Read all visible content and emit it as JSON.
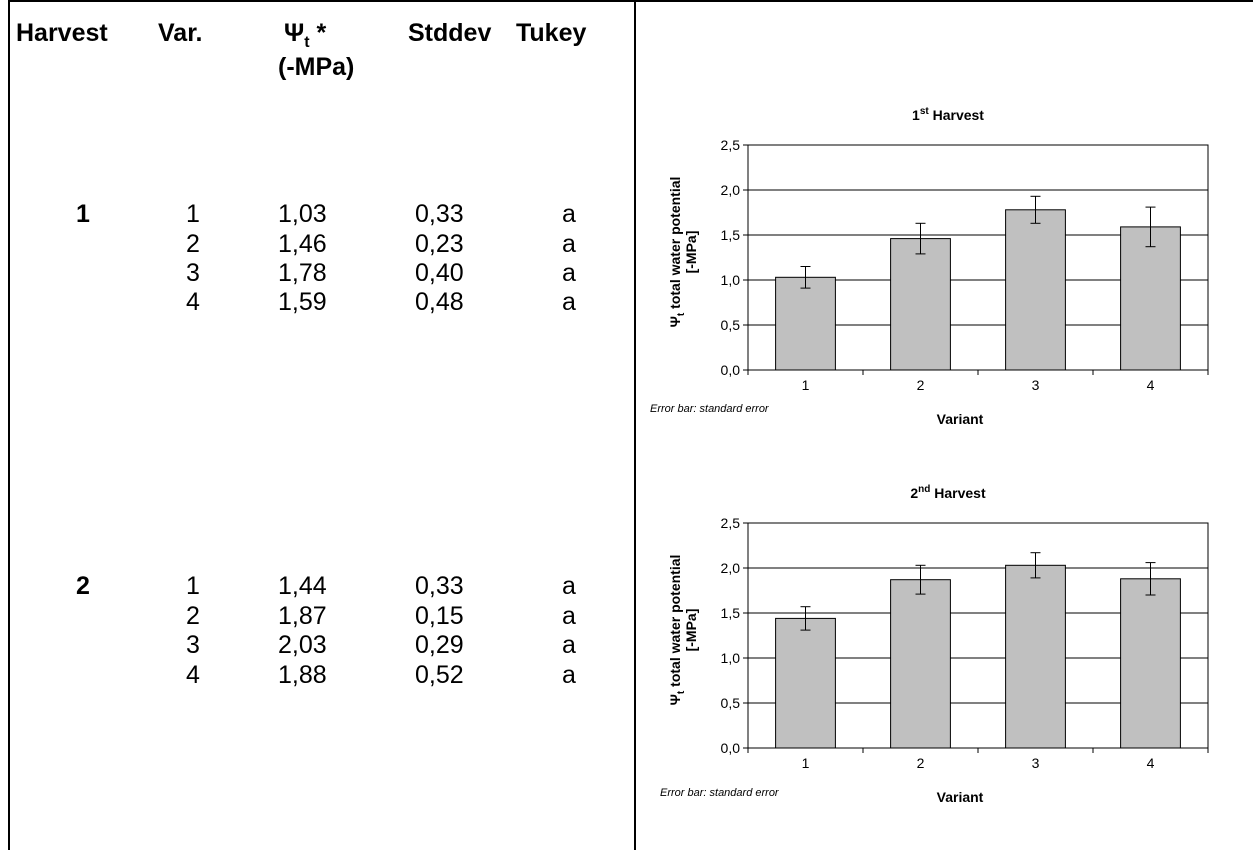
{
  "table": {
    "headers": {
      "harvest": "Harvest",
      "var": "Var.",
      "psi_main": "Ψ",
      "psi_sub": "t",
      "psi_star": " *",
      "psi_unit": "(-MPa)",
      "stddev": "Stddev",
      "tukey": "Tukey"
    },
    "groups": [
      {
        "harvest": "1",
        "rows": [
          {
            "var": "1",
            "psi": "1,03",
            "stddev": "0,33",
            "tukey": "a"
          },
          {
            "var": "2",
            "psi": "1,46",
            "stddev": "0,23",
            "tukey": "a"
          },
          {
            "var": "3",
            "psi": "1,78",
            "stddev": "0,40",
            "tukey": "a"
          },
          {
            "var": "4",
            "psi": "1,59",
            "stddev": "0,48",
            "tukey": "a"
          }
        ]
      },
      {
        "harvest": "2",
        "rows": [
          {
            "var": "1",
            "psi": "1,44",
            "stddev": "0,33",
            "tukey": "a"
          },
          {
            "var": "2",
            "psi": "1,87",
            "stddev": "0,15",
            "tukey": "a"
          },
          {
            "var": "3",
            "psi": "2,03",
            "stddev": "0,29",
            "tukey": "a"
          },
          {
            "var": "4",
            "psi": "1,88",
            "stddev": "0,52",
            "tukey": "a"
          }
        ]
      }
    ]
  },
  "chart_data": [
    {
      "type": "bar",
      "title_num": "1",
      "title_sup": "st",
      "title_rest": " Harvest",
      "categories": [
        "1",
        "2",
        "3",
        "4"
      ],
      "values": [
        1.03,
        1.46,
        1.78,
        1.59
      ],
      "errors": [
        0.12,
        0.17,
        0.15,
        0.22
      ],
      "ylim": [
        0,
        2.5
      ],
      "yticks": [
        "0,0",
        "0,5",
        "1,0",
        "1,5",
        "2,0",
        "2,5"
      ],
      "ylabel_psi": "Ψ",
      "ylabel_sub": "t",
      "ylabel_rest": " total water potential",
      "ylabel_unit": "[-MPa]",
      "xlabel": "Variant",
      "note": "Error bar: standard error",
      "grid": true,
      "bar_color": "#c0c0c0"
    },
    {
      "type": "bar",
      "title_num": "2",
      "title_sup": "nd",
      "title_rest": " Harvest",
      "categories": [
        "1",
        "2",
        "3",
        "4"
      ],
      "values": [
        1.44,
        1.87,
        2.03,
        1.88
      ],
      "errors": [
        0.13,
        0.16,
        0.14,
        0.18
      ],
      "ylim": [
        0,
        2.5
      ],
      "yticks": [
        "0,0",
        "0,5",
        "1,0",
        "1,5",
        "2,0",
        "2,5"
      ],
      "ylabel_psi": "Ψ",
      "ylabel_sub": "t",
      "ylabel_rest": " total water potential",
      "ylabel_unit": "[-MPa]",
      "xlabel": "Variant",
      "note": "Error bar: standard error",
      "grid": true,
      "bar_color": "#c0c0c0"
    }
  ]
}
